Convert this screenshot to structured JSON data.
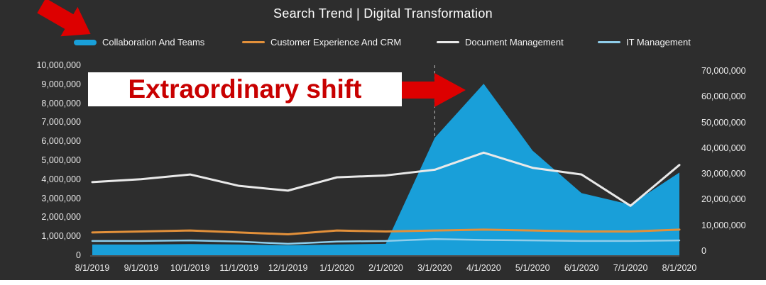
{
  "title": "Search Trend | Digital Transformation",
  "legend": {
    "items": [
      {
        "label": "Collaboration And Teams",
        "color": "#199fd9"
      },
      {
        "label": "Customer Experience And CRM",
        "color": "#e2903a"
      },
      {
        "label": "Document Management",
        "color": "#e9e9e9"
      },
      {
        "label": "IT Management",
        "color": "#8fcdea"
      }
    ]
  },
  "annotation": {
    "text": "Extraordinary shift",
    "text_color": "#c80000",
    "box_color": "#ffffff",
    "arrow_color": "#dd0000"
  },
  "axes": {
    "left_ticks": [
      "10,000,000",
      "9,000,000",
      "8,000,000",
      "7,000,000",
      "6,000,000",
      "5,000,000",
      "4,000,000",
      "3,000,000",
      "2,000,000",
      "1,000,000",
      "0"
    ],
    "right_ticks": [
      "70,000,000",
      "60,000,000",
      "50,000,000",
      "40,000,000",
      "30,000,000",
      "20,000,000",
      "10,000,000",
      "0"
    ],
    "x_ticks": [
      "8/1/2019",
      "9/1/2019",
      "10/1/2019",
      "11/1/2019",
      "12/1/2019",
      "1/1/2020",
      "2/1/2020",
      "3/1/2020",
      "4/1/2020",
      "5/1/2020",
      "6/1/2020",
      "7/1/2020",
      "8/1/2020"
    ]
  },
  "chart_data": {
    "type": "area",
    "title": "Search Trend | Digital Transformation",
    "categories": [
      "8/1/2019",
      "9/1/2019",
      "10/1/2019",
      "11/1/2019",
      "12/1/2019",
      "1/1/2020",
      "2/1/2020",
      "3/1/2020",
      "4/1/2020",
      "5/1/2020",
      "6/1/2020",
      "7/1/2020",
      "8/1/2020"
    ],
    "series": [
      {
        "name": "Collaboration And Teams",
        "type": "area",
        "axis": "right",
        "color": "#199fd9",
        "values": [
          2500000,
          2500000,
          2700000,
          2500000,
          2200000,
          2500000,
          2800000,
          44000000,
          65000000,
          39000000,
          22500000,
          18000000,
          30500000
        ]
      },
      {
        "name": "Customer Experience And CRM",
        "type": "line",
        "axis": "left",
        "color": "#e2903a",
        "width": 3,
        "values": [
          1200000,
          1250000,
          1300000,
          1200000,
          1100000,
          1300000,
          1250000,
          1300000,
          1350000,
          1300000,
          1250000,
          1250000,
          1350000
        ]
      },
      {
        "name": "Document Management",
        "type": "line",
        "axis": "left",
        "color": "#e9e9e9",
        "width": 3,
        "values": [
          3850000,
          4000000,
          4250000,
          3650000,
          3400000,
          4100000,
          4200000,
          4500000,
          5400000,
          4600000,
          4250000,
          2600000,
          4750000
        ]
      },
      {
        "name": "IT Management",
        "type": "line",
        "axis": "left",
        "color": "#8fcdea",
        "width": 2.5,
        "values": [
          750000,
          750000,
          780000,
          720000,
          600000,
          720000,
          750000,
          850000,
          800000,
          780000,
          750000,
          750000,
          780000
        ]
      }
    ],
    "left_axis": {
      "min": 0,
      "max": 10000000
    },
    "right_axis": {
      "min": 0,
      "max": 70000000
    },
    "marker_line_at": "3/1/2020",
    "grid": false,
    "legend_position": "top",
    "background": "#2d2d2d"
  }
}
